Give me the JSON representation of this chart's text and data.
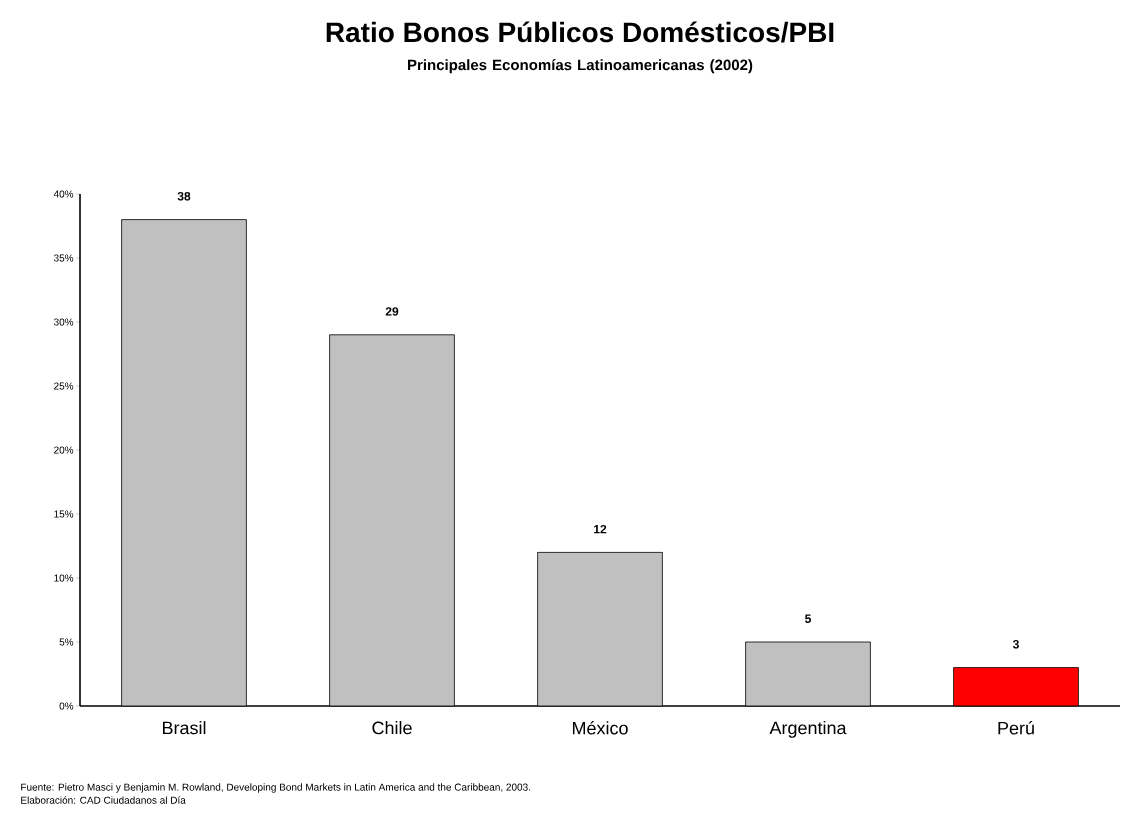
{
  "chart_data": {
    "type": "bar",
    "title": "Ratio Bonos Públicos Domésticos/PBI",
    "subtitle": "Principales Economías Latinoamericanas (2002)",
    "categories": [
      "Brasil",
      "Chile",
      "México",
      "Argentina",
      "Perú"
    ],
    "values": [
      38,
      29,
      12,
      5,
      3
    ],
    "colors": [
      "#c0c0c0",
      "#c0c0c0",
      "#c0c0c0",
      "#c0c0c0",
      "#ff0000"
    ],
    "data_labels": true,
    "ylim": [
      0,
      40
    ],
    "yticks": [
      {
        "value": 0,
        "label": "0%"
      },
      {
        "value": 5,
        "label": "5%"
      },
      {
        "value": 10,
        "label": "10%"
      },
      {
        "value": 15,
        "label": "15%"
      },
      {
        "value": 20,
        "label": "20%"
      },
      {
        "value": 25,
        "label": "25%"
      },
      {
        "value": 30,
        "label": "30%"
      },
      {
        "value": 35,
        "label": "35%"
      },
      {
        "value": 40,
        "label": "40%"
      }
    ],
    "grid": false,
    "annotations": [
      "Fuente: Pietro Masci y Benjamin M. Rowland, Developing Bond Markets in Latin America and the Caribbean, 2003.",
      "Elaboración: CAD Ciudadanos al Día"
    ]
  }
}
